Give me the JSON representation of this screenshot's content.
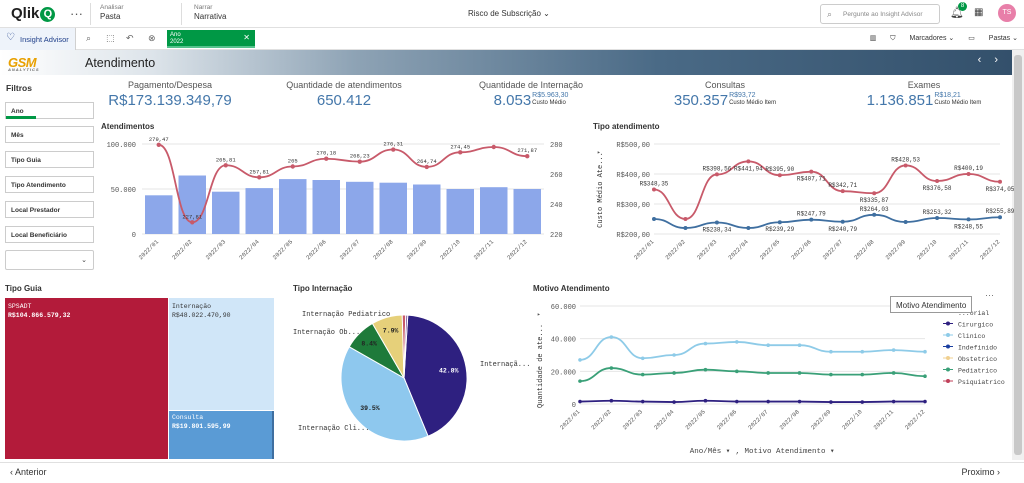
{
  "topbar": {
    "logo_text": "Qlik",
    "logo_q": "Q",
    "dots": "···",
    "analyze_key": "Analisar",
    "analyze_value": "Pasta",
    "narrate_key": "Narrar",
    "narrate_value": "Narrativa",
    "app_title": "Risco de Subscrição",
    "chevron": "⌄",
    "search_placeholder": "Pergunte ao Insight Advisor",
    "notification_count": "8",
    "avatar_initials": "TS"
  },
  "toolbar": {
    "insight_label": "Insight Advisor",
    "selection_field": "Ano",
    "selection_value": "2022",
    "close": "✕",
    "bookmarks_label": "Marcadores",
    "sheets_label": "Pastas"
  },
  "sheet": {
    "brand": "GSM",
    "brand_sub": "ANALYTICS",
    "title": "Atendimento",
    "prev_icon": "‹",
    "next_icon": "›"
  },
  "filters": {
    "title": "Filtros",
    "items": [
      "Ano",
      "Mês",
      "Tipo Guia",
      "Tipo Atendimento",
      "Local Prestador",
      "Local Beneficiário"
    ],
    "dropdown_icon": "⌄"
  },
  "kpis": [
    {
      "label": "Pagamento/Despesa",
      "value": "R$173.139.349,79"
    },
    {
      "label": "Quantidade de atendimentos",
      "value": "650.412"
    },
    {
      "label": "Quantidade de Internação",
      "value": "8.053",
      "sub_value": "R$5.963,30",
      "sub_label": "Custo Médio"
    },
    {
      "label": "Consultas",
      "value": "350.357",
      "sub_value": "R$93,72",
      "sub_label": "Custo Médio Item"
    },
    {
      "label": "Exames",
      "value": "1.136.851",
      "sub_value": "R$18,21",
      "sub_label": "Custo Médio Item"
    }
  ],
  "colors": {
    "bar": "#8ca7ea",
    "line_red": "#c85a6a",
    "line_blue": "#3f6fa0",
    "green": "#009845",
    "treemap_red": "#b31b3a",
    "treemap_light": "#d0e6f8",
    "treemap_blue": "#5a9bd5",
    "pie_purple": "#2e2080",
    "pie_light": "#8ec8ee",
    "pie_green": "#1e7a3a",
    "pie_yellow": "#e6d07a",
    "motivo_cirurgico": "#2e2080",
    "motivo_clinico": "#8ecbe8",
    "motivo_indefinido": "#1a3fa0",
    "motivo_obstetrico": "#f0d090",
    "motivo_pediatrico": "#3aa078",
    "motivo_psiquiatrico": "#c0405a"
  },
  "chart_data": [
    {
      "type": "bar",
      "title": "Atendimentos",
      "categories": [
        "2022/01",
        "2022/02",
        "2022/03",
        "2022/04",
        "2022/05",
        "2022/06",
        "2022/07",
        "2022/08",
        "2022/09",
        "2022/10",
        "2022/11",
        "2022/12"
      ],
      "y_ticks": [
        "100.000",
        "50.000",
        "0"
      ],
      "y2_ticks": [
        "280",
        "260",
        "240",
        "220"
      ],
      "ylim": [
        0,
        100000
      ],
      "y2lim": [
        220,
        280
      ],
      "series": [
        {
          "values": [
            43000,
            65000,
            47000,
            51000,
            61000,
            60000,
            58000,
            57000,
            55000,
            50000,
            52000,
            50000
          ]
        },
        {
          "values": [
            279.47,
            227.81,
            265.81,
            257.81,
            265,
            270.18,
            268.23,
            276.31,
            264.74,
            274.45,
            278,
            271.87
          ],
          "labels": [
            "279,47",
            "227,81",
            "265,81",
            "257,81",
            "265",
            "270,18",
            "268,23",
            "276,31",
            "264,74",
            "274,45",
            "",
            "271,87"
          ]
        }
      ]
    },
    {
      "type": "line",
      "title": "Tipo atendimento",
      "ylabel": "Custo Médio Ate...",
      "categories": [
        "2022/01",
        "2022/02",
        "2022/03",
        "2022/04",
        "2022/05",
        "2022/06",
        "2022/07",
        "2022/08",
        "2022/09",
        "2022/10",
        "2022/11",
        "2022/12"
      ],
      "y_ticks": [
        "R$500,00",
        "R$400,00",
        "R$300,00",
        "R$200,00"
      ],
      "ylim": [
        200,
        500
      ],
      "series": [
        {
          "values": [
            348.35,
            250,
            398.56,
            441.94,
            395.9,
            407.71,
            342.71,
            335.87,
            428.53,
            376.58,
            400.19,
            374.05
          ],
          "labels": [
            "R$348,35",
            "",
            "R$398,56",
            "R$441,94",
            "R$395,90",
            "R$407,71",
            "R$342,71",
            "R$335,87",
            "R$428,53",
            "R$376,58",
            "R$400,19",
            "R$374,05"
          ]
        },
        {
          "values": [
            250,
            220,
            238.34,
            220,
            239.29,
            247.79,
            240.79,
            264.03,
            240,
            253.32,
            248.55,
            255.89
          ],
          "labels": [
            "",
            "",
            "R$238,34",
            "",
            "R$239,29",
            "R$247,79",
            "R$240,79",
            "R$264,03",
            "",
            "R$253,32",
            "R$248,55",
            "R$255,89"
          ]
        }
      ]
    },
    {
      "type": "treemap",
      "title": "Tipo Guia",
      "items": [
        {
          "label": "SPSADT",
          "value": "R$104.866.579,32"
        },
        {
          "label": "Internação",
          "value": "R$48.022.470,90"
        },
        {
          "label": "Consulta",
          "value": "R$19.801.595,99"
        }
      ]
    },
    {
      "type": "pie",
      "title": "Tipo Internação",
      "slices": [
        {
          "label": "Internaçã...",
          "value": 42.8,
          "text": "42.8%"
        },
        {
          "label": "Internação Cli...",
          "value": 39.5,
          "text": "39.5%"
        },
        {
          "label": "Internação Ob...",
          "value": 8.4,
          "text": "8.4%"
        },
        {
          "label": "Internação Pediatrico",
          "value": 7.9,
          "text": "7.9%"
        },
        {
          "label": "",
          "value": 0.9,
          "text": ""
        },
        {
          "label": "",
          "value": 0.5,
          "text": ""
        }
      ]
    },
    {
      "type": "line",
      "title": "Motivo Atendimento",
      "ylabel": "Quantidade de ate...",
      "categories": [
        "2022/01",
        "2022/02",
        "2022/03",
        "2022/04",
        "2022/05",
        "2022/06",
        "2022/07",
        "2022/08",
        "2022/09",
        "2022/10",
        "2022/11",
        "2022/12"
      ],
      "y_ticks": [
        "60.000",
        "40.000",
        "20.000",
        "0"
      ],
      "ylim": [
        0,
        60000
      ],
      "legend": [
        "...orial",
        "Cirurgico",
        "Clinico",
        "Indefinido",
        "Obstetrico",
        "Pediatrico",
        "Psiquiatrico"
      ],
      "series": [
        {
          "name": "Clinico",
          "values": [
            27000,
            41000,
            28000,
            30000,
            37000,
            38000,
            36000,
            36000,
            32000,
            32000,
            33000,
            32000
          ]
        },
        {
          "name": "Pediatrico",
          "values": [
            14000,
            22000,
            18000,
            19000,
            21000,
            20000,
            19000,
            19000,
            18000,
            18000,
            19000,
            17000
          ]
        },
        {
          "name": "Cirurgico",
          "values": [
            1500,
            2000,
            1500,
            1200,
            2000,
            1500,
            1500,
            1500,
            1200,
            1200,
            1500,
            1500
          ]
        }
      ],
      "tooltip": "Motivo Atendimento",
      "axis_x_label": "Ano/Mês",
      "axis_dim_label": "Motivo Atendimento"
    }
  ],
  "footer": {
    "prev": "Anterior",
    "next": "Proximo"
  }
}
